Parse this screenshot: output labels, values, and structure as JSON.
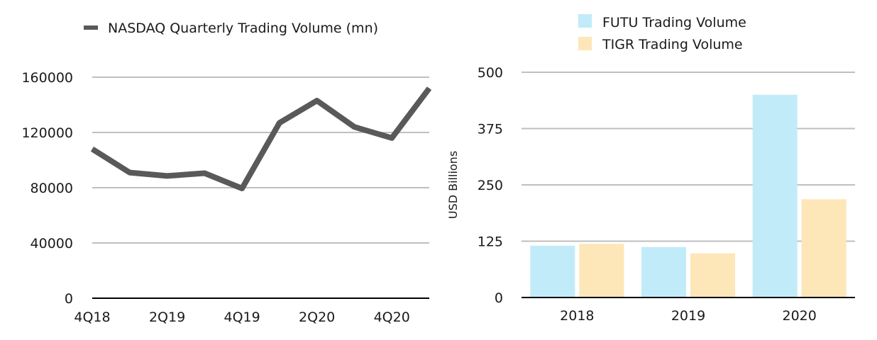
{
  "colors": {
    "nasdaq_line": "#595959",
    "futu": "#c1ebf8",
    "tigr": "#fde6b8",
    "grid": "#bfbfbf",
    "axis": "#000000"
  },
  "chart_data": [
    {
      "type": "line",
      "series": [
        {
          "name": "NASDAQ Quarterly Trading Volume (mn)",
          "x": [
            "4Q18",
            "1Q19",
            "2Q19",
            "3Q19",
            "4Q19",
            "1Q20",
            "2Q20",
            "3Q20",
            "4Q20",
            "1Q21"
          ],
          "values": [
            108000,
            91000,
            88500,
            90500,
            79500,
            127000,
            143000,
            124000,
            116000,
            152000
          ]
        }
      ],
      "x_tick_labels": [
        "4Q18",
        "2Q19",
        "4Q19",
        "2Q20",
        "4Q20"
      ],
      "y_tick_labels": [
        "0",
        "40000",
        "80000",
        "120000",
        "160000"
      ],
      "ylim": [
        0,
        160000
      ],
      "grid": true,
      "legend_position": "top"
    },
    {
      "type": "bar",
      "categories": [
        "2018",
        "2019",
        "2020"
      ],
      "series": [
        {
          "name": "FUTU Trading Volume",
          "values": [
            115,
            112,
            450
          ]
        },
        {
          "name": "TIGR Trading Volume",
          "values": [
            119,
            98,
            218
          ]
        }
      ],
      "ylabel": "USD Billions",
      "y_tick_labels": [
        "0",
        "125",
        "250",
        "375",
        "500"
      ],
      "ylim": [
        0,
        500
      ],
      "grid": true,
      "legend_position": "top"
    }
  ]
}
